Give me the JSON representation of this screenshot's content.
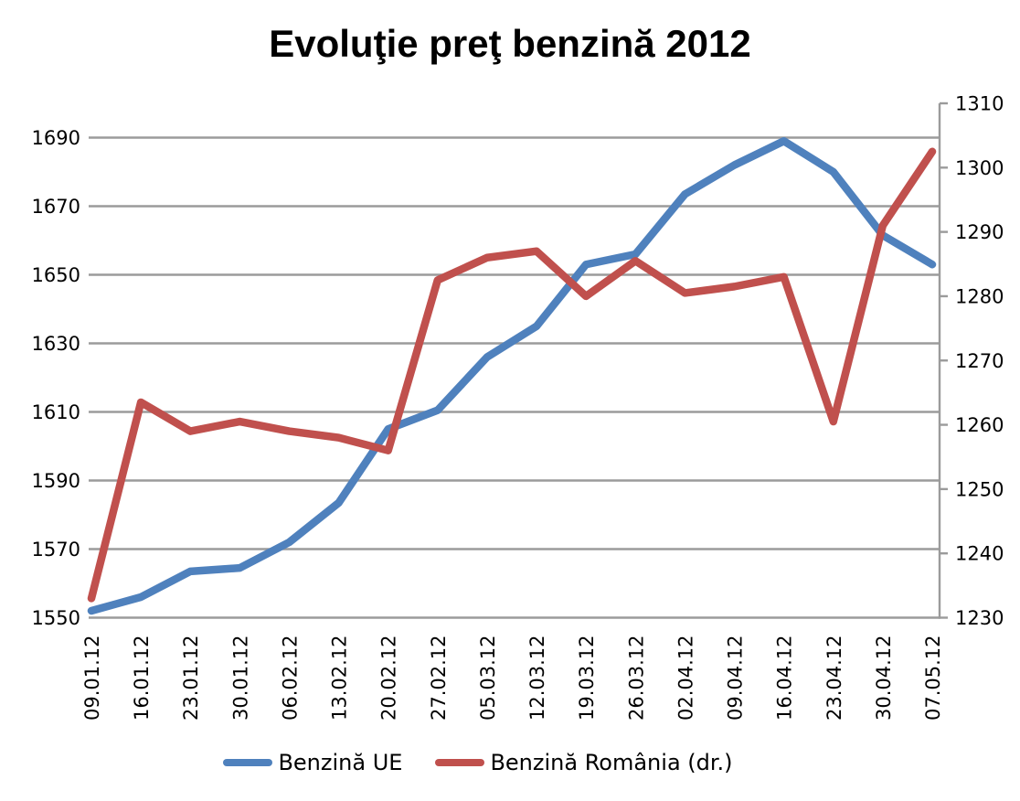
{
  "chart_data": {
    "type": "line",
    "title": "Evoluţie preţ benzină 2012",
    "x": [
      "09.01.12",
      "16.01.12",
      "23.01.12",
      "30.01.12",
      "06.02.12",
      "13.02.12",
      "20.02.12",
      "27.02.12",
      "05.03.12",
      "12.03.12",
      "19.03.12",
      "26.03.12",
      "02.04.12",
      "09.04.12",
      "16.04.12",
      "23.04.12",
      "30.04.12",
      "07.05.12"
    ],
    "series": [
      {
        "name": "Benzină UE",
        "axis": "left",
        "color": "#4F81BD",
        "values": [
          1552,
          1556,
          1563.5,
          1564.5,
          1572,
          1583.5,
          1605,
          1610.5,
          1626,
          1635,
          1653,
          1656,
          1673.5,
          1682,
          1689,
          1680,
          1661.5,
          1653
        ]
      },
      {
        "name": "Benzină România (dr.)",
        "axis": "right",
        "color": "#C0504D",
        "values": [
          1233,
          1263.5,
          1259,
          1260.5,
          1259,
          1258,
          1256,
          1282.5,
          1286,
          1287,
          1280,
          1285.5,
          1280.5,
          1281.5,
          1283,
          1260.5,
          1291,
          1302.5
        ]
      }
    ],
    "left_axis": {
      "range": [
        1550,
        1700
      ],
      "ticks": [
        1550,
        1570,
        1590,
        1610,
        1630,
        1650,
        1670,
        1690
      ]
    },
    "right_axis": {
      "range": [
        1230,
        1310
      ],
      "ticks": [
        1230,
        1240,
        1250,
        1260,
        1270,
        1280,
        1290,
        1300,
        1310
      ]
    },
    "grid": true,
    "legend_position": "bottom",
    "colors": {
      "gridline": "#9B9B9B",
      "axis_text": "#000000",
      "background": "#FFFFFF"
    }
  }
}
